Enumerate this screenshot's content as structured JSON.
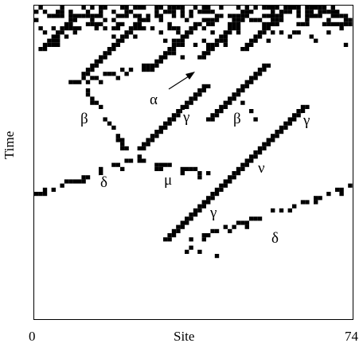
{
  "axes": {
    "xlabel": "Site",
    "ylabel": "Time",
    "x_min_label": "0",
    "x_max_label": "74"
  },
  "particles": {
    "alpha": "α",
    "beta_left": "β",
    "beta_right": "β",
    "gamma_upper": "γ",
    "gamma_right": "γ",
    "gamma_lower": "γ",
    "delta_left": "δ",
    "delta_right": "δ",
    "mu": "μ",
    "nu": "ν"
  },
  "colors": {
    "cell_on": "#000000",
    "background": "#ffffff"
  }
}
